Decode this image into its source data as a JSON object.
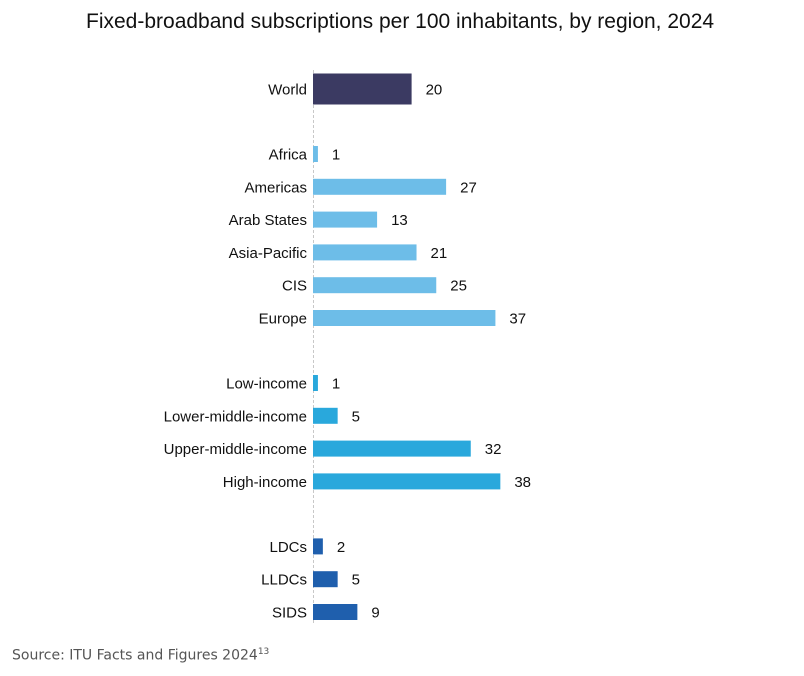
{
  "chart_data": {
    "type": "bar",
    "orientation": "horizontal",
    "title": "Fixed-broadband subscriptions per 100 inhabitants, by region, 2024",
    "xlabel": "",
    "ylabel": "",
    "xlim": [
      0,
      40
    ],
    "grid": false,
    "groups": [
      {
        "name": "world",
        "color": "#3b3a62",
        "categories": [
          "World"
        ],
        "values": [
          20
        ]
      },
      {
        "name": "regions",
        "color": "#6dbde8",
        "categories": [
          "Africa",
          "Americas",
          "Arab States",
          "Asia-Pacific",
          "CIS",
          "Europe"
        ],
        "values": [
          1,
          27,
          13,
          21,
          25,
          37
        ]
      },
      {
        "name": "income",
        "color": "#29a8dc",
        "categories": [
          "Low-income",
          "Lower-middle-income",
          "Upper-middle-income",
          "High-income"
        ],
        "values": [
          1,
          5,
          32,
          38
        ]
      },
      {
        "name": "development",
        "color": "#1f5fad",
        "categories": [
          "LDCs",
          "LLDCs",
          "SIDS"
        ],
        "values": [
          2,
          5,
          9
        ]
      }
    ]
  },
  "source": {
    "text": "Source: ITU Facts and Figures 2024",
    "footnote": "13"
  }
}
